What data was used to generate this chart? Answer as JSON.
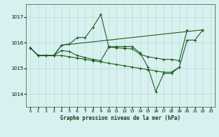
{
  "title": "Graphe pression niveau de la mer (hPa)",
  "bg_color": "#d8f0f0",
  "grid_color": "#b8dada",
  "line_color": "#1a5c1a",
  "xlim": [
    -0.5,
    23.5
  ],
  "ylim": [
    1013.5,
    1017.5
  ],
  "yticks": [
    1014,
    1015,
    1016,
    1017
  ],
  "xtick_labels": [
    "0",
    "1",
    "2",
    "3",
    "4",
    "5",
    "6",
    "7",
    "8",
    "9",
    "10",
    "11",
    "12",
    "13",
    "14",
    "15",
    "16",
    "17",
    "18",
    "19",
    "20",
    "21",
    "22",
    "23"
  ],
  "s1_x": [
    0,
    1,
    2,
    3,
    4,
    5,
    6,
    7,
    8,
    9,
    10,
    11,
    12,
    13,
    14,
    15,
    16,
    17,
    18,
    19,
    20,
    21,
    22
  ],
  "s1_y": [
    1015.8,
    1015.5,
    1015.5,
    1015.5,
    1015.9,
    1015.95,
    1016.2,
    1016.2,
    1016.6,
    1017.1,
    1015.85,
    1015.85,
    1015.85,
    1015.85,
    1015.6,
    1015.05,
    1014.1,
    1014.8,
    1014.8,
    1015.05,
    1016.1,
    1016.1,
    1016.5
  ],
  "s2_x": [
    0,
    1,
    2,
    3,
    4,
    22
  ],
  "s2_y": [
    1015.8,
    1015.5,
    1015.5,
    1015.5,
    1015.9,
    1016.5
  ],
  "s3_x": [
    0,
    1,
    2,
    3,
    4,
    5,
    6,
    7,
    8,
    9,
    10,
    11,
    12,
    13,
    14,
    15,
    16,
    17,
    18,
    19
  ],
  "s3_y": [
    1015.8,
    1015.5,
    1015.5,
    1015.5,
    1015.5,
    1015.45,
    1015.4,
    1015.35,
    1015.3,
    1015.25,
    1015.2,
    1015.15,
    1015.1,
    1015.05,
    1015.0,
    1014.95,
    1014.9,
    1014.85,
    1014.85,
    1015.05
  ],
  "s4_x": [
    0,
    1,
    2,
    3,
    4,
    5,
    6,
    7,
    8,
    9,
    10,
    11,
    12,
    13,
    14,
    15,
    16,
    17,
    18,
    19,
    20
  ],
  "s4_y": [
    1015.8,
    1015.5,
    1015.5,
    1015.5,
    1015.7,
    1015.65,
    1015.5,
    1015.42,
    1015.35,
    1015.3,
    1015.82,
    1015.8,
    1015.78,
    1015.76,
    1015.55,
    1015.45,
    1015.4,
    1015.35,
    1015.35,
    1015.3,
    1016.5
  ]
}
